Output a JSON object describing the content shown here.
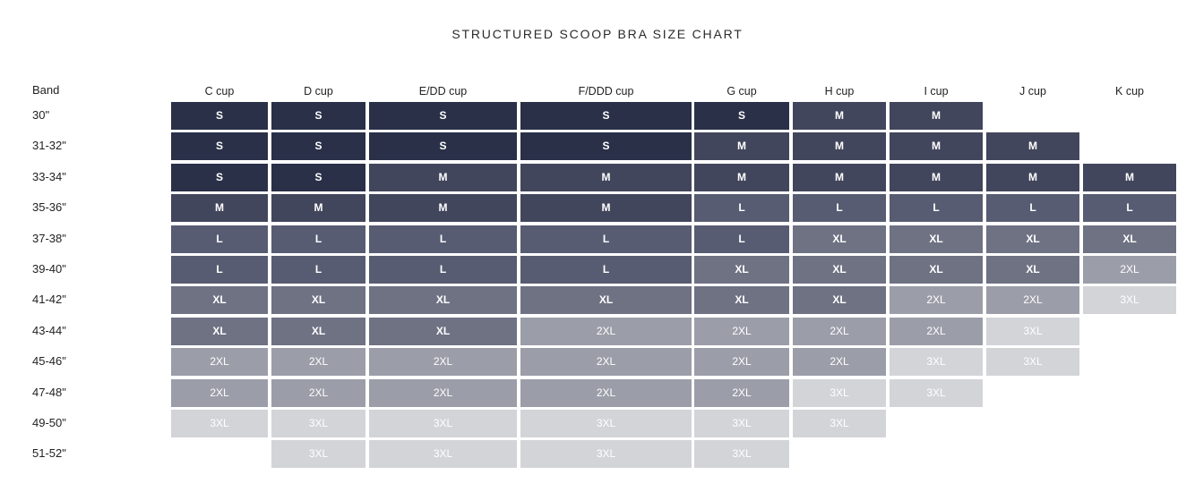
{
  "chart_data": {
    "type": "table",
    "title": "STRUCTURED SCOOP BRA SIZE CHART",
    "row_header": "Band",
    "columns": [
      "C cup",
      "D cup",
      "E/DD cup",
      "F/DDD cup",
      "G cup",
      "H cup",
      "I cup",
      "J cup",
      "K cup"
    ],
    "rows": [
      {
        "band": "30\"",
        "sizes": [
          "S",
          "S",
          "S",
          "S",
          "S",
          "M",
          "M",
          "",
          ""
        ]
      },
      {
        "band": "31-32\"",
        "sizes": [
          "S",
          "S",
          "S",
          "S",
          "M",
          "M",
          "M",
          "M",
          ""
        ]
      },
      {
        "band": "33-34\"",
        "sizes": [
          "S",
          "S",
          "M",
          "M",
          "M",
          "M",
          "M",
          "M",
          "M"
        ]
      },
      {
        "band": "35-36\"",
        "sizes": [
          "M",
          "M",
          "M",
          "M",
          "L",
          "L",
          "L",
          "L",
          "L"
        ]
      },
      {
        "band": "37-38\"",
        "sizes": [
          "L",
          "L",
          "L",
          "L",
          "L",
          "XL",
          "XL",
          "XL",
          "XL"
        ]
      },
      {
        "band": "39-40\"",
        "sizes": [
          "L",
          "L",
          "L",
          "L",
          "XL",
          "XL",
          "XL",
          "XL",
          "2XL"
        ]
      },
      {
        "band": "41-42\"",
        "sizes": [
          "XL",
          "XL",
          "XL",
          "XL",
          "XL",
          "XL",
          "2XL",
          "2XL",
          "3XL"
        ]
      },
      {
        "band": "43-44\"",
        "sizes": [
          "XL",
          "XL",
          "XL",
          "2XL",
          "2XL",
          "2XL",
          "2XL",
          "3XL",
          ""
        ]
      },
      {
        "band": "45-46\"",
        "sizes": [
          "2XL",
          "2XL",
          "2XL",
          "2XL",
          "2XL",
          "2XL",
          "3XL",
          "3XL",
          ""
        ]
      },
      {
        "band": "47-48\"",
        "sizes": [
          "2XL",
          "2XL",
          "2XL",
          "2XL",
          "2XL",
          "3XL",
          "3XL",
          "",
          ""
        ]
      },
      {
        "band": "49-50\"",
        "sizes": [
          "3XL",
          "3XL",
          "3XL",
          "3XL",
          "3XL",
          "3XL",
          "",
          "",
          ""
        ]
      },
      {
        "band": "51-52\"",
        "sizes": [
          "",
          "3XL",
          "3XL",
          "3XL",
          "3XL",
          "",
          "",
          "",
          ""
        ]
      }
    ],
    "size_colors": {
      "S": "#2a3048",
      "M": "#42465c",
      "L": "#585c72",
      "XL": "#6e7283",
      "2XL": "#9b9ea8",
      "3XL": "#d3d4d8"
    }
  }
}
